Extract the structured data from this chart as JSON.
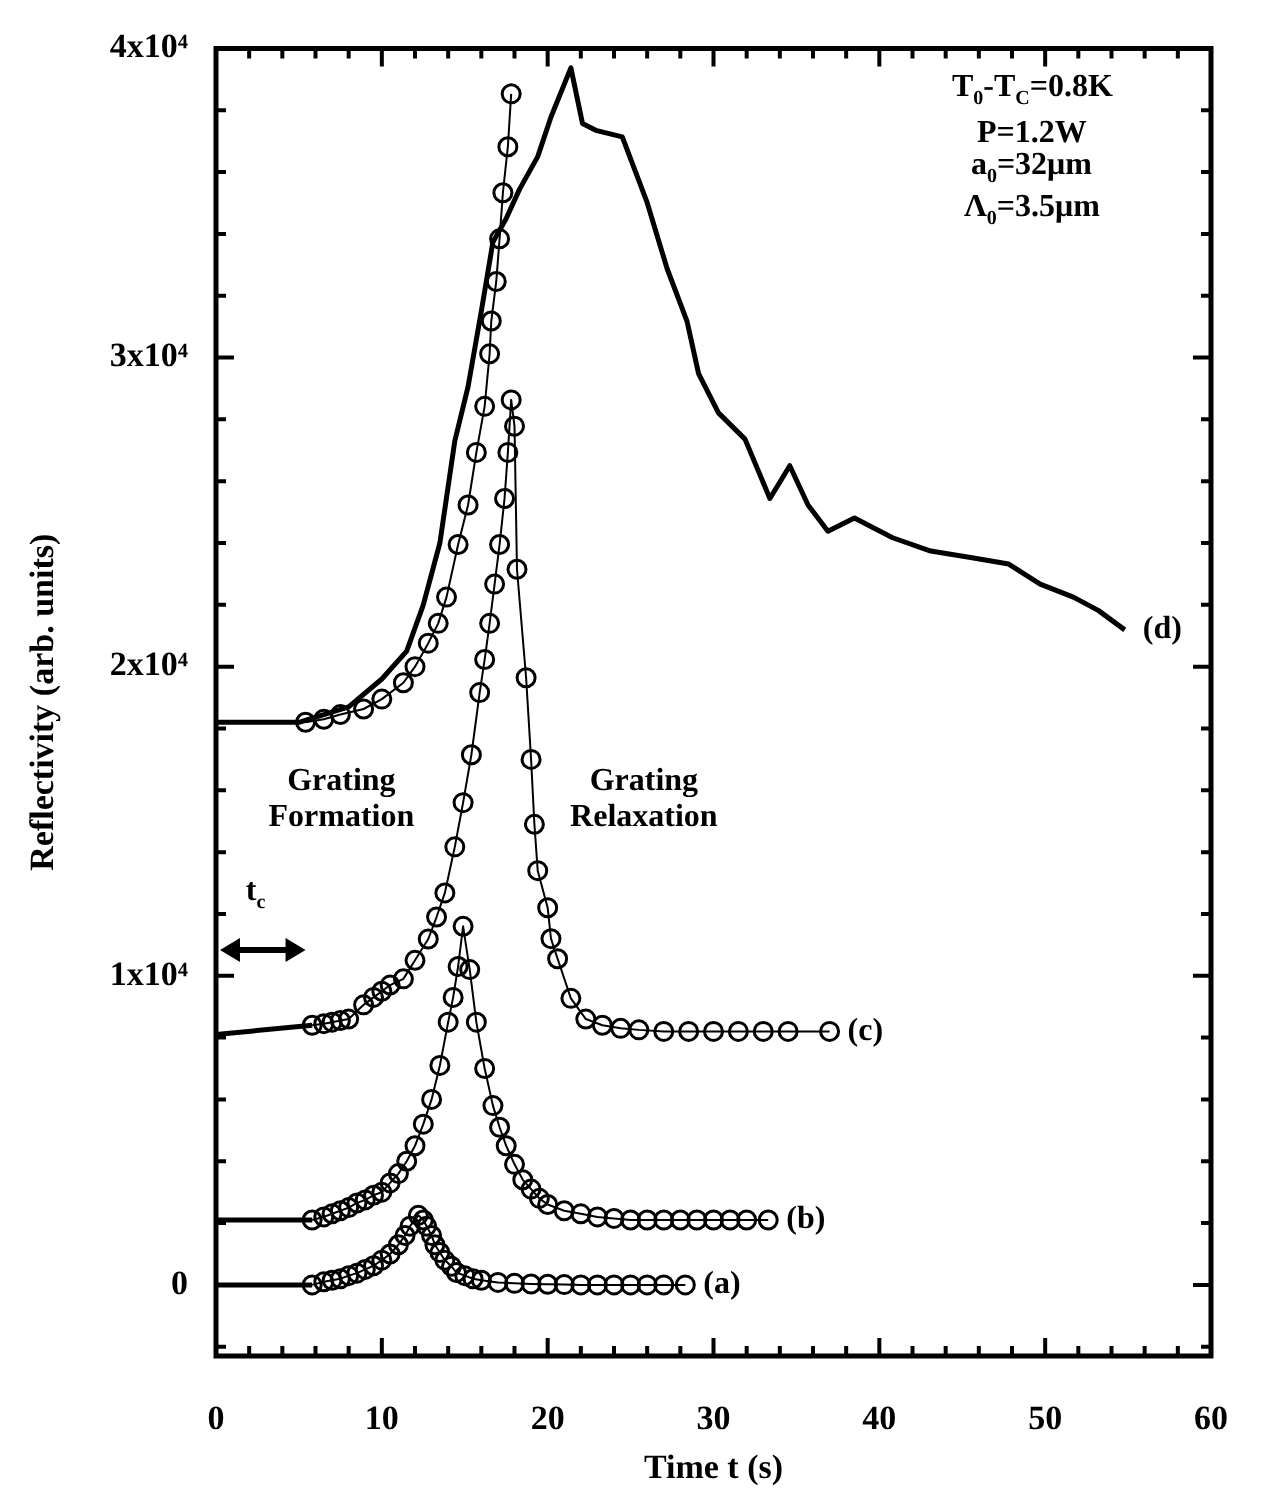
{
  "chart_data": {
    "type": "line",
    "xlabel": "Time t (s)",
    "ylabel": "Reflectivity (arb. units)",
    "xlim": [
      0,
      60
    ],
    "ylim": [
      -2300,
      40000
    ],
    "xticks": [
      0,
      {
        "value": 2,
        "label": null
      },
      {
        "value": 4,
        "label": null
      },
      {
        "value": 6,
        "label": null
      },
      {
        "value": 8,
        "label": null
      },
      10,
      {
        "value": 12,
        "label": null
      },
      {
        "value": 14,
        "label": null
      },
      {
        "value": 16,
        "label": null
      },
      {
        "value": 18,
        "label": null
      },
      20,
      {
        "value": 22,
        "label": null
      },
      {
        "value": 24,
        "label": null
      },
      {
        "value": 26,
        "label": null
      },
      {
        "value": 28,
        "label": null
      },
      30,
      {
        "value": 32,
        "label": null
      },
      {
        "value": 34,
        "label": null
      },
      {
        "value": 36,
        "label": null
      },
      {
        "value": 38,
        "label": null
      },
      40,
      {
        "value": 42,
        "label": null
      },
      {
        "value": 44,
        "label": null
      },
      {
        "value": 46,
        "label": null
      },
      {
        "value": 48,
        "label": null
      },
      50,
      {
        "value": 52,
        "label": null
      },
      {
        "value": 54,
        "label": null
      },
      {
        "value": 56,
        "label": null
      },
      {
        "value": 58,
        "label": null
      },
      60
    ],
    "yticks": [
      {
        "value": -2000,
        "label": null
      },
      0,
      {
        "value": 2000,
        "label": null
      },
      {
        "value": 4000,
        "label": null
      },
      {
        "value": 6000,
        "label": null
      },
      {
        "value": 8000,
        "label": null
      },
      {
        "value": 10000,
        "label": "1x10⁴"
      },
      {
        "value": 12000,
        "label": null
      },
      {
        "value": 14000,
        "label": null
      },
      {
        "value": 16000,
        "label": null
      },
      {
        "value": 18000,
        "label": null
      },
      {
        "value": 20000,
        "label": "2x10⁴"
      },
      {
        "value": 22000,
        "label": null
      },
      {
        "value": 24000,
        "label": null
      },
      {
        "value": 26000,
        "label": null
      },
      {
        "value": 28000,
        "label": null
      },
      {
        "value": 30000,
        "label": "3x10⁴"
      },
      {
        "value": 32000,
        "label": null
      },
      {
        "value": 34000,
        "label": null
      },
      {
        "value": 36000,
        "label": null
      },
      {
        "value": 38000,
        "label": null
      },
      {
        "value": 40000,
        "label": "4x10⁴"
      }
    ],
    "series": [
      {
        "name": "(a)",
        "color": "#000000",
        "marker": "circle",
        "x": [
          5.8,
          6.5,
          7,
          7.5,
          8,
          8.5,
          9,
          9.5,
          10,
          10.5,
          11,
          11.4,
          11.7,
          12.2,
          12.5,
          12.7,
          13,
          13.2,
          13.5,
          13.8,
          14.2,
          14.5,
          15,
          15.5,
          16,
          17,
          18,
          19,
          20,
          21,
          22,
          23,
          24,
          25,
          26,
          27,
          28.3
        ],
        "values": [
          0,
          100,
          150,
          200,
          300,
          380,
          500,
          620,
          800,
          1000,
          1300,
          1600,
          1900,
          2250,
          2100,
          1900,
          1600,
          1300,
          1050,
          800,
          600,
          400,
          300,
          200,
          150,
          80,
          50,
          30,
          20,
          10,
          0,
          0,
          0,
          0,
          0,
          0,
          0
        ]
      },
      {
        "name": "(b)",
        "color": "#000000",
        "marker": "circle",
        "x": [
          5.8,
          6.5,
          7,
          7.5,
          8,
          8.5,
          9,
          9.5,
          10,
          10.5,
          11,
          11.5,
          12,
          12.5,
          13,
          13.5,
          14,
          14.3,
          14.6,
          14.9,
          15.3,
          15.7,
          16.2,
          16.7,
          17.1,
          17.5,
          18,
          18.5,
          19,
          19.5,
          20,
          21,
          22,
          23,
          24,
          25,
          26,
          27,
          28,
          29,
          30,
          31,
          32,
          33.3
        ],
        "values": [
          2100,
          2200,
          2300,
          2400,
          2500,
          2650,
          2750,
          2900,
          3000,
          3300,
          3600,
          4000,
          4500,
          5200,
          6000,
          7100,
          8500,
          9300,
          10300,
          11600,
          10200,
          8500,
          7000,
          5800,
          5100,
          4500,
          3900,
          3400,
          3100,
          2800,
          2600,
          2400,
          2300,
          2200,
          2150,
          2100,
          2100,
          2100,
          2100,
          2100,
          2100,
          2100,
          2100,
          2100
        ]
      },
      {
        "name": "(c)",
        "color": "#000000",
        "marker": "circle",
        "x": [
          5.8,
          6.5,
          7,
          7.5,
          8,
          8.9,
          9.5,
          10,
          10.5,
          11.3,
          12,
          12.8,
          13.3,
          13.8,
          14.4,
          14.9,
          15.4,
          15.9,
          16.2,
          16.5,
          16.8,
          17.1,
          17.4,
          17.6,
          17.8,
          18.0,
          18.15,
          18.7,
          19.0,
          19.2,
          19.4,
          20.0,
          20.2,
          20.6,
          21.4,
          22.3,
          23.3,
          24.4,
          25.5,
          27,
          28.5,
          30,
          31.5,
          33,
          34.5,
          37
        ],
        "values": [
          8400,
          8450,
          8500,
          8550,
          8600,
          9060,
          9300,
          9500,
          9700,
          9900,
          10500,
          11190,
          11900,
          12680,
          14170,
          15600,
          17150,
          19160,
          20230,
          21400,
          22670,
          23950,
          25440,
          26930,
          28630,
          27780,
          23150,
          19640,
          17000,
          14900,
          13400,
          12200,
          11200,
          10550,
          9270,
          8600,
          8400,
          8300,
          8250,
          8200,
          8200,
          8200,
          8200,
          8200,
          8200,
          8200
        ]
      },
      {
        "color": "#000000",
        "marker": "circle",
        "x": [
          5.4,
          6.5,
          7.5,
          8.9,
          10,
          11.3,
          12,
          12.8,
          13.4,
          13.9,
          14.6,
          15.2,
          15.7,
          16.2,
          16.5,
          16.6,
          16.9,
          17.1,
          17.3,
          17.6,
          17.8
        ],
        "values": [
          18200,
          18300,
          18450,
          18630,
          18950,
          19480,
          20000,
          20760,
          21400,
          22250,
          23950,
          25230,
          26930,
          28420,
          30120,
          31180,
          32460,
          33840,
          35330,
          36820,
          38530
        ]
      },
      {
        "name": "(d)",
        "color": "#000000",
        "marker": "none",
        "x": [
          0,
          5,
          8,
          10,
          11.5,
          12.5,
          13.5,
          14.4,
          15.2,
          16,
          16.7,
          17.5,
          18.3,
          19.4,
          20.2,
          21.4,
          22.1,
          22.9,
          24.5,
          26.0,
          27.2,
          28.4,
          29.1,
          30.3,
          31.9,
          33.4,
          34.6,
          35.7,
          36.9,
          38.5,
          40.8,
          43.1,
          45.5,
          47.8,
          49.7,
          51.7,
          53.2,
          54.8
        ],
        "values": [
          18200,
          18200,
          18700,
          19600,
          20500,
          22000,
          24000,
          27300,
          29060,
          31500,
          33740,
          34500,
          35440,
          36500,
          37780,
          39370,
          37570,
          37350,
          37140,
          35010,
          32880,
          31180,
          29480,
          28210,
          27360,
          25440,
          26500,
          25230,
          24380,
          24810,
          24170,
          23740,
          23530,
          23320,
          22670,
          22250,
          21820,
          21190
        ]
      },
      {
        "color": "#000000",
        "marker": "none",
        "x": [
          0,
          5.8
        ],
        "values": [
          0,
          0
        ]
      },
      {
        "color": "#000000",
        "marker": "none",
        "x": [
          0,
          5.8
        ],
        "values": [
          2100,
          2100
        ]
      },
      {
        "color": "#000000",
        "marker": "none",
        "x": [
          0,
          5.8
        ],
        "values": [
          8100,
          8400
        ]
      }
    ],
    "annotations": [
      "T$_{0}$-T$_{C}$=0.8K",
      "P=1.2W",
      "a$_{0}$=32μm",
      "Λ$_{0}$=3.5μm",
      "Grating Formation",
      "Grating Relaxation",
      "t$_{c}$"
    ]
  }
}
